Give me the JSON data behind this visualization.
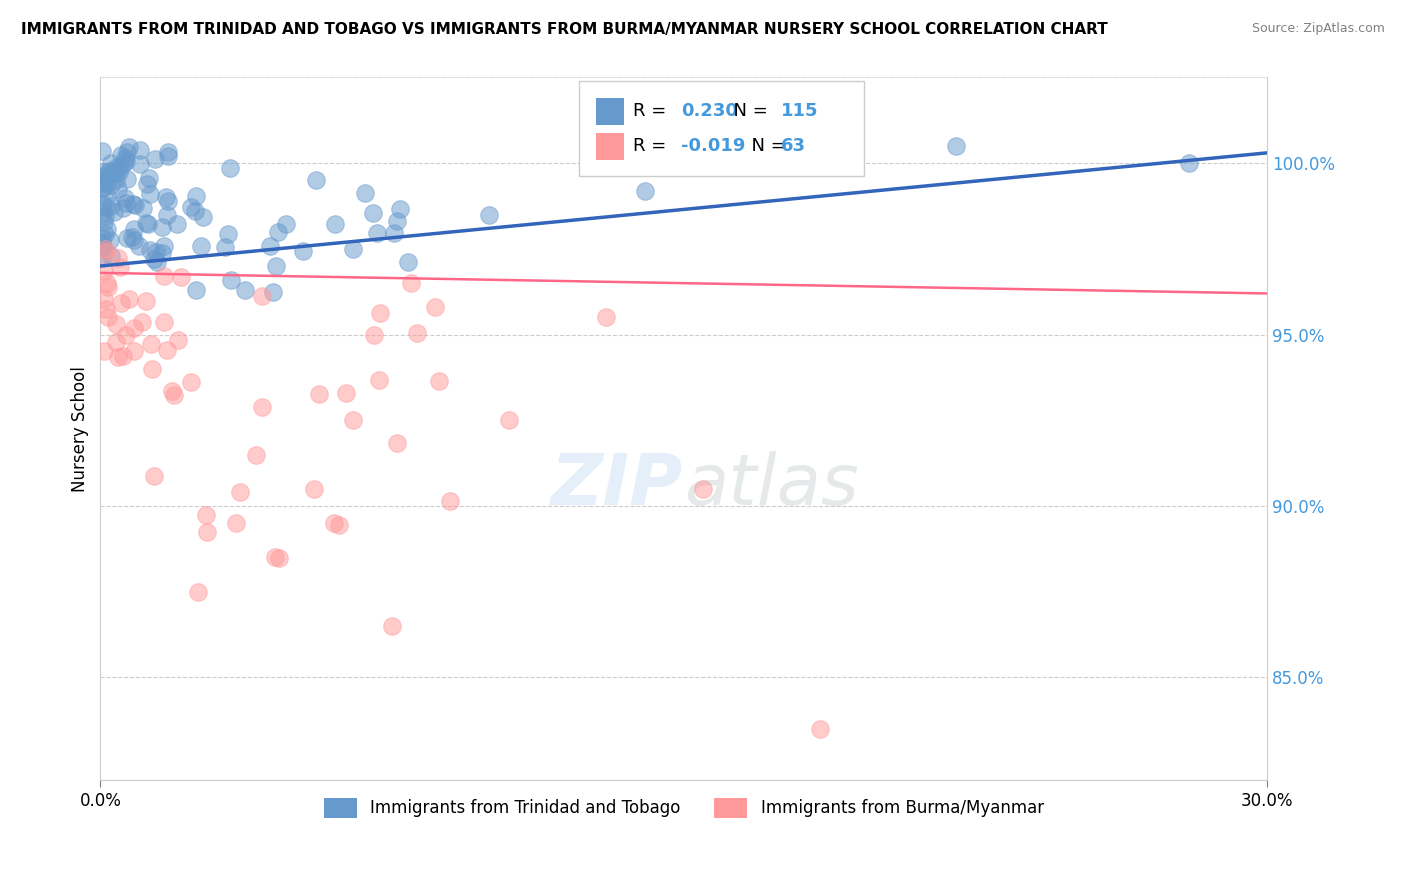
{
  "title": "IMMIGRANTS FROM TRINIDAD AND TOBAGO VS IMMIGRANTS FROM BURMA/MYANMAR NURSERY SCHOOL CORRELATION CHART",
  "source": "Source: ZipAtlas.com",
  "ylabel": "Nursery School",
  "ytick_values": [
    85.0,
    90.0,
    95.0,
    100.0
  ],
  "xmin": 0.0,
  "xmax": 30.0,
  "ymin": 82.0,
  "ymax": 102.5,
  "legend_blue_r": "0.230",
  "legend_blue_n": "115",
  "legend_pink_r": "-0.019",
  "legend_pink_n": "63",
  "legend_label_blue": "Immigrants from Trinidad and Tobago",
  "legend_label_pink": "Immigrants from Burma/Myanmar",
  "blue_color": "#6699CC",
  "pink_color": "#FF9999",
  "trend_blue_color": "#3366BB",
  "trend_pink_color": "#FF6688",
  "blue_trend_x0": 0.0,
  "blue_trend_y0": 97.0,
  "blue_trend_x1": 30.0,
  "blue_trend_y1": 100.3,
  "pink_trend_x0": 0.0,
  "pink_trend_y0": 96.8,
  "pink_trend_x1": 30.0,
  "pink_trend_y1": 96.2
}
